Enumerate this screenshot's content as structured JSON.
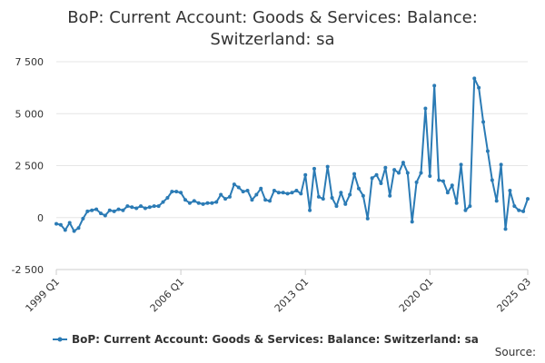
{
  "chart_data": {
    "type": "line",
    "title": "BoP: Current Account: Goods & Services: Balance: Switzerland: sa",
    "xlabel": "",
    "ylabel": "",
    "x_start": "1999 Q1",
    "x_end": "2025 Q3",
    "x_tick_labels": [
      "1999 Q1",
      "2006 Q1",
      "2013 Q1",
      "2020 Q1",
      "2025 Q3"
    ],
    "y_tick_labels": [
      "7 500",
      "5 000",
      "2 500",
      "0",
      "-2 500"
    ],
    "y_tick_values": [
      7500,
      5000,
      2500,
      0,
      -2500
    ],
    "ylim": [
      -2500,
      7500
    ],
    "grid": true,
    "legend_position": "bottom",
    "source_label": "Source:",
    "series": [
      {
        "name": "BoP: Current Account: Goods & Services: Balance: Switzerland: sa",
        "color": "#2b7bb5",
        "values": [
          -300,
          -350,
          -600,
          -250,
          -650,
          -500,
          -50,
          300,
          350,
          400,
          200,
          100,
          350,
          300,
          400,
          350,
          550,
          500,
          450,
          550,
          450,
          500,
          550,
          550,
          750,
          950,
          1250,
          1250,
          1200,
          850,
          700,
          800,
          700,
          650,
          700,
          700,
          750,
          1100,
          900,
          1000,
          1600,
          1450,
          1250,
          1300,
          850,
          1100,
          1400,
          850,
          800,
          1300,
          1200,
          1200,
          1150,
          1200,
          1300,
          1150,
          2050,
          350,
          2350,
          1000,
          900,
          2450,
          950,
          550,
          1200,
          650,
          1100,
          2100,
          1400,
          1050,
          -50,
          1900,
          2050,
          1650,
          2400,
          1050,
          2300,
          2150,
          2650,
          2150,
          -200,
          1700,
          2150,
          5250,
          2000,
          6350,
          1800,
          1750,
          1200,
          1550,
          700,
          2550,
          350,
          550,
          6700,
          6250,
          4600,
          3200,
          1800,
          800,
          2550,
          -550,
          1300,
          550,
          350,
          300,
          900
        ]
      }
    ]
  }
}
